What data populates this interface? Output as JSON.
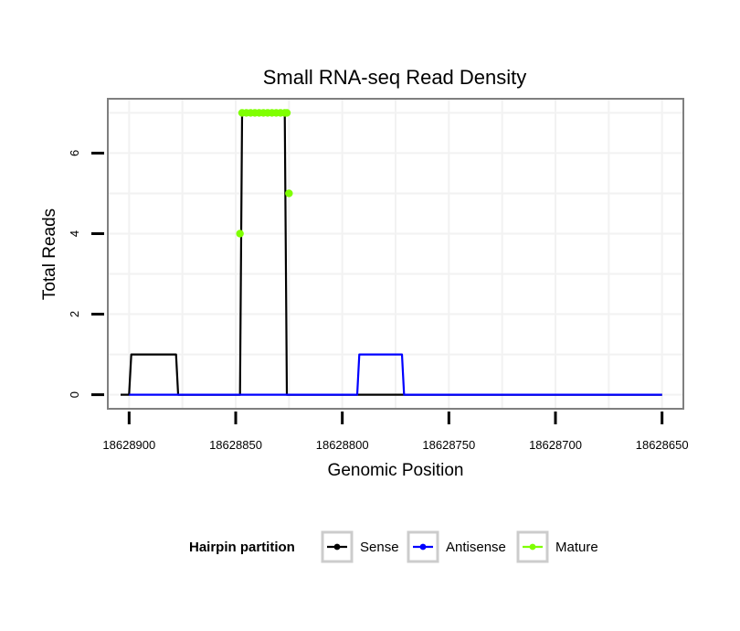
{
  "chart_data": {
    "type": "line",
    "title": "Small RNA-seq Read Density",
    "xlabel": "Genomic Position",
    "ylabel": "Total Reads",
    "x_reversed": true,
    "xlim": [
      18628910,
      18628640
    ],
    "ylim": [
      -0.35,
      7.35
    ],
    "x_ticks": [
      18628900,
      18628850,
      18628800,
      18628750,
      18628700,
      18628650
    ],
    "x_tick_labels": [
      "18628900",
      "18628850",
      "18628800",
      "18628750",
      "18628700",
      "18628650"
    ],
    "y_ticks": [
      0,
      2,
      4,
      6
    ],
    "y_tick_labels": [
      "0",
      "2",
      "4",
      "6"
    ],
    "grid": true,
    "legend": {
      "title": "Hairpin partition",
      "position": "bottom",
      "entries": [
        "Sense",
        "Antisense",
        "Mature"
      ]
    },
    "series": [
      {
        "name": "Sense",
        "color": "#000000",
        "style": "line",
        "x": [
          18628904,
          18628900,
          18628899,
          18628878,
          18628877,
          18628848,
          18628847,
          18628827,
          18628826,
          18628821,
          18628650
        ],
        "y": [
          0,
          0,
          1,
          1,
          0,
          0,
          7,
          7,
          0,
          0,
          0
        ]
      },
      {
        "name": "Antisense",
        "color": "#0000ff",
        "style": "line",
        "x": [
          18628900,
          18628793,
          18628792,
          18628772,
          18628771,
          18628650
        ],
        "y": [
          0,
          0,
          1,
          1,
          0,
          0
        ]
      },
      {
        "name": "Mature",
        "color": "#7fff00",
        "style": "points",
        "x": [
          18628848,
          18628847,
          18628845,
          18628843,
          18628841,
          18628839,
          18628837,
          18628835,
          18628833,
          18628831,
          18628829,
          18628827,
          18628826,
          18628825
        ],
        "y": [
          4,
          7,
          7,
          7,
          7,
          7,
          7,
          7,
          7,
          7,
          7,
          7,
          7,
          5
        ]
      }
    ]
  }
}
